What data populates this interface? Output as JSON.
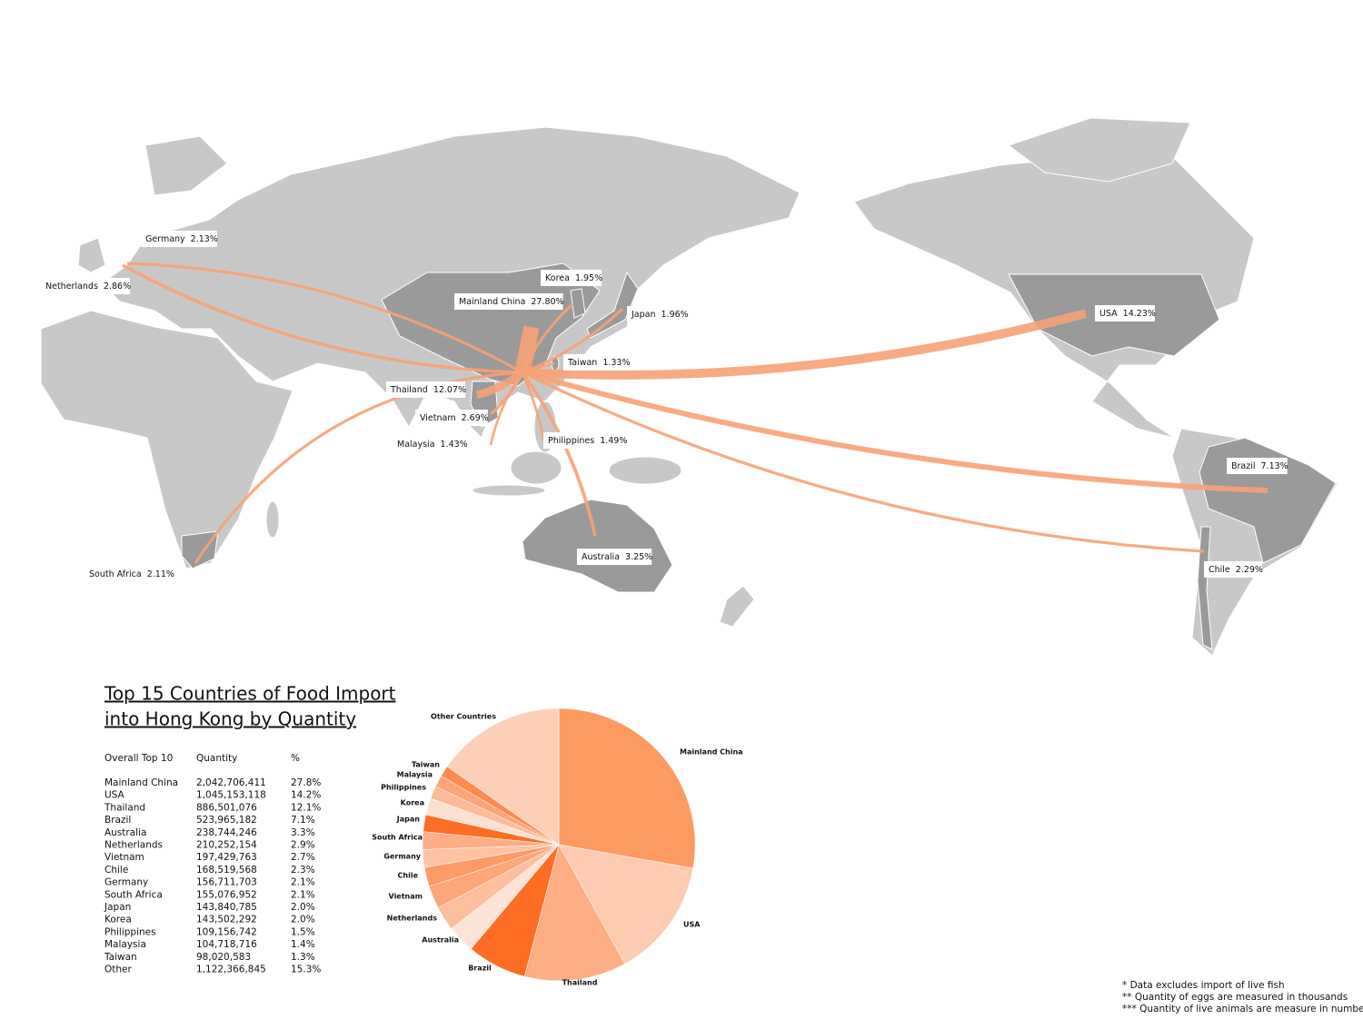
{
  "map": {
    "flows": [
      {
        "name": "Mainland China",
        "value": 27.8,
        "value_label": "27.80%"
      },
      {
        "name": "USA",
        "value": 14.23,
        "value_label": "14.23%"
      },
      {
        "name": "Thailand",
        "value": 12.07,
        "value_label": "12.07%"
      },
      {
        "name": "Brazil",
        "value": 7.13,
        "value_label": "7.13%"
      },
      {
        "name": "Australia",
        "value": 3.25,
        "value_label": "3.25%"
      },
      {
        "name": "Netherlands",
        "value": 2.86,
        "value_label": "2.86%"
      },
      {
        "name": "Vietnam",
        "value": 2.69,
        "value_label": "2.69%"
      },
      {
        "name": "Chile",
        "value": 2.29,
        "value_label": "2.29%"
      },
      {
        "name": "Germany",
        "value": 2.13,
        "value_label": "2.13%"
      },
      {
        "name": "South Africa",
        "value": 2.11,
        "value_label": "2.11%"
      },
      {
        "name": "Japan",
        "value": 1.96,
        "value_label": "1.96%"
      },
      {
        "name": "Korea",
        "value": 1.95,
        "value_label": "1.95%"
      },
      {
        "name": "Philippines",
        "value": 1.49,
        "value_label": "1.49%"
      },
      {
        "name": "Malaysia",
        "value": 1.43,
        "value_label": "1.43%"
      },
      {
        "name": "Taiwan",
        "value": 1.33,
        "value_label": "1.33%"
      }
    ]
  },
  "table": {
    "title": [
      "Top 15 Countries of Food Import",
      "into Hong Kong by Quantity"
    ],
    "header": [
      "Overall Top 10",
      "Quantity",
      "%"
    ],
    "rows": [
      [
        "Mainland China",
        "2,042,706,411",
        "27.8%"
      ],
      [
        "USA",
        "1,045,153,118",
        "14.2%"
      ],
      [
        "Thailand",
        "886,501,076",
        "12.1%"
      ],
      [
        "Brazil",
        "523,965,182",
        "7.1%"
      ],
      [
        "Australia",
        "238,744,246",
        "3.3%"
      ],
      [
        "Netherlands",
        "210,252,154",
        "2.9%"
      ],
      [
        "Vietnam",
        "197,429,763",
        "2.7%"
      ],
      [
        "Chile",
        "168,519,568",
        "2.3%"
      ],
      [
        "Germany",
        "156,711,703",
        "2.1%"
      ],
      [
        "South Africa",
        "155,076,952",
        "2.1%"
      ],
      [
        "Japan",
        "143,840,785",
        "2.0%"
      ],
      [
        "Korea",
        "143,502,292",
        "2.0%"
      ],
      [
        "Philippines",
        "109,156,742",
        "1.5%"
      ],
      [
        "Malaysia",
        "104,718,716",
        "1.4%"
      ],
      [
        "Taiwan",
        "98,020,583",
        "1.3%"
      ],
      [
        "Other",
        "1,122,366,845",
        "15.3%"
      ]
    ]
  },
  "chart_data": {
    "type": "pie",
    "categories": [
      "Mainland China",
      "USA",
      "Thailand",
      "Brazil",
      "Australia",
      "Netherlands",
      "Vietnam",
      "Chile",
      "Germany",
      "South Africa",
      "Japan",
      "Korea",
      "Philippines",
      "Malaysia",
      "Taiwan",
      "Other Countries"
    ],
    "values": [
      27.8,
      14.2,
      12.1,
      7.1,
      3.3,
      2.9,
      2.7,
      2.3,
      2.1,
      2.1,
      2.0,
      2.0,
      1.5,
      1.4,
      1.3,
      15.3
    ],
    "colors": [
      "#fd9a62",
      "#fdcbb0",
      "#fdae85",
      "#fd6d24",
      "#fde4d6",
      "#fdbf9d",
      "#fda679",
      "#fd9b66",
      "#fdc3a4",
      "#fdae88",
      "#fd6d24",
      "#fde0d0",
      "#fdbb98",
      "#fda57a",
      "#fd8b4f",
      "#fdcfb7"
    ]
  },
  "footnotes": [
    "* Data excludes import of live fish",
    "** Quantity of eggs are measured in thousands",
    "*** Quantity of live animals are measure in numbers"
  ]
}
